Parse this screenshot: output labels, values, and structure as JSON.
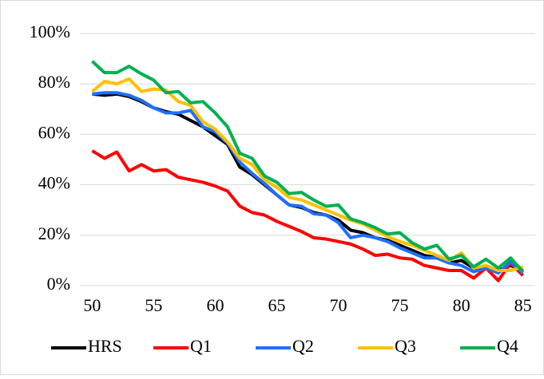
{
  "chart_data": {
    "type": "line",
    "x": [
      50,
      51,
      52,
      53,
      54,
      55,
      56,
      57,
      58,
      59,
      60,
      61,
      62,
      63,
      64,
      65,
      66,
      67,
      68,
      69,
      70,
      71,
      72,
      73,
      74,
      75,
      76,
      77,
      78,
      79,
      80,
      81,
      82,
      83,
      84,
      85
    ],
    "series": [
      {
        "name": "HRS",
        "color": "#000000",
        "values": [
          76,
          75.5,
          76,
          75,
          73,
          70.5,
          69,
          68,
          65.5,
          63,
          59.5,
          56,
          47,
          44,
          40,
          36,
          32,
          31,
          29,
          28,
          26,
          22,
          21,
          19,
          18,
          16,
          14,
          12,
          11,
          9,
          10,
          7,
          7,
          6,
          8,
          6
        ]
      },
      {
        "name": "Q1",
        "color": "#ff0000",
        "values": [
          53.5,
          50.5,
          53,
          45.5,
          48,
          45.5,
          46,
          43,
          42,
          41,
          39.5,
          37.5,
          31.5,
          29,
          28,
          25.5,
          23.5,
          21.5,
          19,
          18.5,
          17.5,
          16.5,
          14.5,
          12,
          12.5,
          11,
          10.5,
          8,
          7,
          6,
          6,
          3,
          7,
          2,
          9,
          4
        ]
      },
      {
        "name": "Q2",
        "color": "#1f6fff",
        "values": [
          76,
          76.5,
          76.5,
          75.5,
          73.5,
          70.5,
          68.5,
          68.5,
          69.5,
          63,
          61,
          56.5,
          49,
          44.5,
          40.5,
          36,
          32,
          31.5,
          28.5,
          28,
          25,
          19,
          20,
          19,
          17.5,
          15,
          13,
          11,
          11,
          9,
          8,
          5.5,
          7,
          5,
          9.5,
          5
        ]
      },
      {
        "name": "Q3",
        "color": "#ffc000",
        "values": [
          77,
          81,
          80,
          82,
          77,
          78,
          77.5,
          73,
          71.5,
          65,
          62,
          57,
          50.5,
          48,
          42,
          39,
          35,
          34,
          32,
          30,
          28,
          26,
          24.5,
          22,
          19.5,
          17.5,
          16,
          14,
          12,
          10,
          13,
          7,
          8,
          6,
          6,
          7.5
        ]
      },
      {
        "name": "Q4",
        "color": "#00b050",
        "values": [
          89,
          84.5,
          84.5,
          87,
          84,
          81.5,
          76.5,
          77,
          72.5,
          73,
          68.5,
          63,
          52.5,
          50.5,
          43.5,
          41,
          36.5,
          37,
          34,
          31.5,
          32,
          26.5,
          25,
          23,
          20.5,
          21,
          17,
          14.5,
          16,
          10.5,
          12,
          7.5,
          10.5,
          7,
          11,
          5.5
        ]
      }
    ],
    "xlim": [
      49,
      86
    ],
    "xticks": [
      50,
      55,
      60,
      65,
      70,
      75,
      80,
      85
    ],
    "ylim": [
      0,
      100
    ],
    "yticks": [
      {
        "value": 0,
        "label": "0%"
      },
      {
        "value": 20,
        "label": "20%"
      },
      {
        "value": 40,
        "label": "40%"
      },
      {
        "value": 60,
        "label": "60%"
      },
      {
        "value": 80,
        "label": "80%"
      },
      {
        "value": 100,
        "label": "100%"
      }
    ],
    "grid": true,
    "legend": "bottom"
  }
}
